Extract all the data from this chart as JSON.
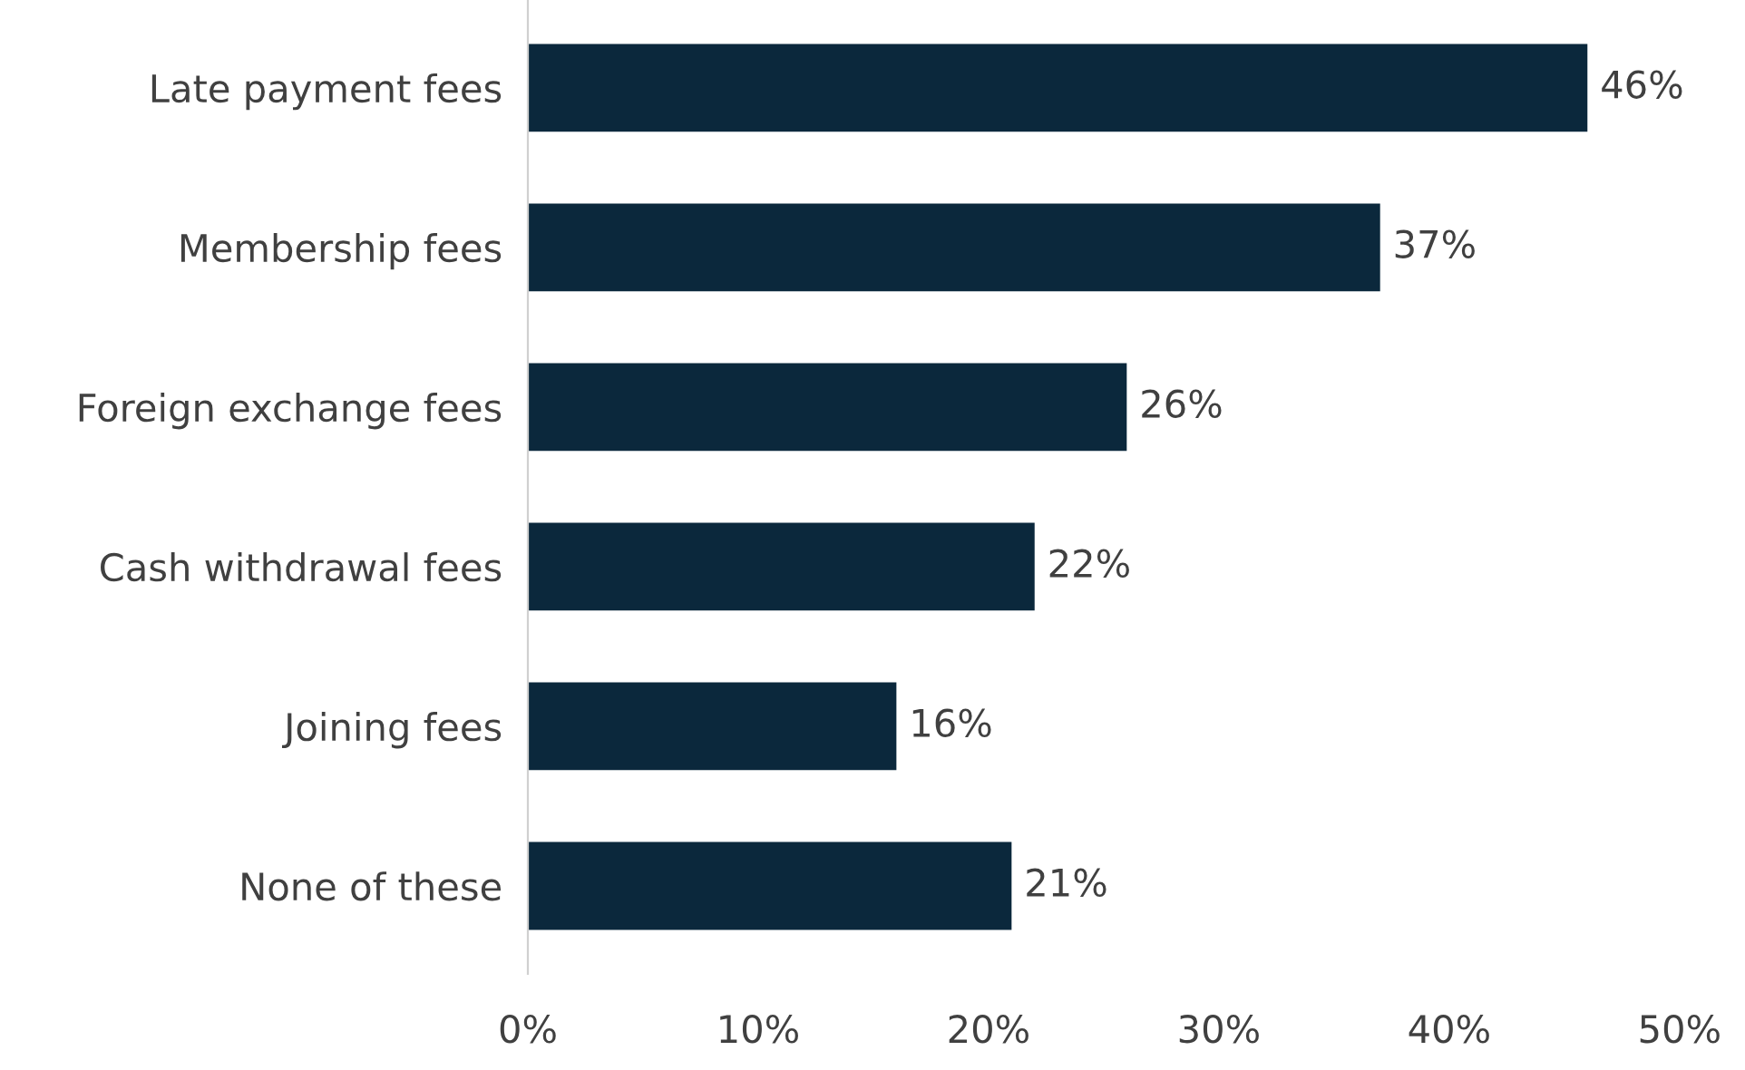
{
  "chart_data": {
    "type": "bar",
    "orientation": "horizontal",
    "categories": [
      "Late payment fees",
      "Membership fees",
      "Foreign exchange fees",
      "Cash withdrawal fees",
      "Joining fees",
      "None of these"
    ],
    "values": [
      46,
      37,
      26,
      22,
      16,
      21
    ],
    "value_labels": [
      "46%",
      "37%",
      "26%",
      "22%",
      "16%",
      "21%"
    ],
    "color": "#0b283c",
    "xlim": [
      0,
      50
    ],
    "xticks": [
      {
        "value": 0,
        "label": "0%"
      },
      {
        "value": 10,
        "label": "10%"
      },
      {
        "value": 20,
        "label": "20%"
      },
      {
        "value": 30,
        "label": "30%"
      },
      {
        "value": 40,
        "label": "40%"
      },
      {
        "value": 50,
        "label": "50%"
      }
    ],
    "grid": false,
    "legend": false
  }
}
